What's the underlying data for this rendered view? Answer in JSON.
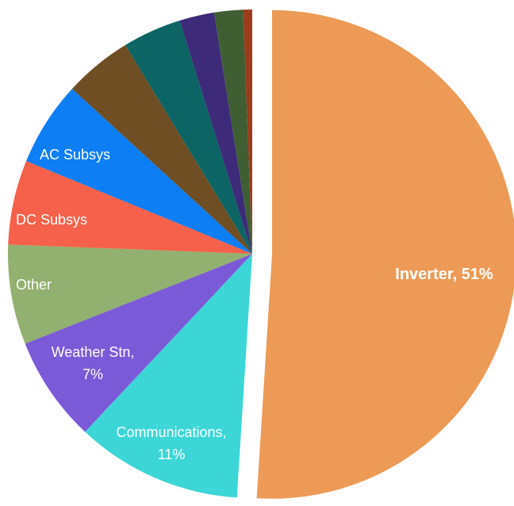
{
  "chart_data": {
    "type": "pie",
    "title": "",
    "exploded_slice": "Inverter",
    "slices": [
      {
        "label": "Inverter",
        "value": 51,
        "color": "#EC9A55",
        "display": [
          "Inverter, 51%"
        ]
      },
      {
        "label": "Communications",
        "value": 11,
        "color": "#3CD6D6",
        "display": [
          "Communications,",
          "11%"
        ]
      },
      {
        "label": "Weather Stn",
        "value": 7,
        "color": "#7B5AD8",
        "display": [
          "Weather Stn,",
          "7%"
        ]
      },
      {
        "label": "Other",
        "value": 6.6,
        "color": "#92B06F",
        "display": [
          "Other"
        ]
      },
      {
        "label": "DC Subsys",
        "value": 5.6,
        "color": "#F5614A",
        "display": [
          "DC Subsys"
        ]
      },
      {
        "label": "AC Subsys",
        "value": 5.6,
        "color": "#0D7EF4",
        "display": [
          "AC Subsys"
        ]
      },
      {
        "label": "",
        "value": 4.5,
        "color": "#6F4E23",
        "display": []
      },
      {
        "label": "",
        "value": 3.9,
        "color": "#0D6464",
        "display": []
      },
      {
        "label": "",
        "value": 2.3,
        "color": "#3D2A79",
        "display": []
      },
      {
        "label": "",
        "value": 1.9,
        "color": "#3F5E32",
        "display": []
      },
      {
        "label": "",
        "value": 0.6,
        "color": "#9C3C1A",
        "display": []
      }
    ]
  }
}
